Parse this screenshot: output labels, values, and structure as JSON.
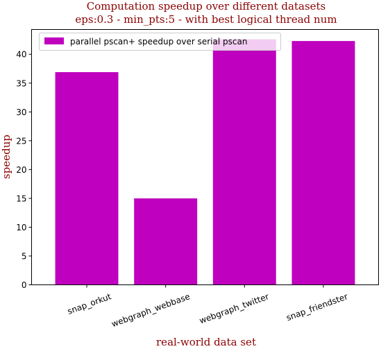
{
  "chart_data": {
    "type": "bar",
    "title": "Computation speedup over different datasets",
    "subtitle": "eps:0.3 - min_pts:5 - with best logical thread num",
    "xlabel": "real-world data set",
    "ylabel": "speedup",
    "categories": [
      "snap_orkut",
      "webgraph_webbase",
      "webgraph_twitter",
      "snap_friendster"
    ],
    "series": [
      {
        "name": "parallel pscan+ speedup over serial pscan",
        "values": [
          36.9,
          15.0,
          42.6,
          42.3
        ],
        "color": "#bf00bf"
      }
    ],
    "ylim": [
      0,
      44.3
    ],
    "yticks": [
      0,
      5,
      10,
      15,
      20,
      25,
      30,
      35,
      40
    ],
    "grid": false,
    "legend_position": "top-left",
    "title_color": "#8b0000",
    "label_color": "#8b0000"
  }
}
